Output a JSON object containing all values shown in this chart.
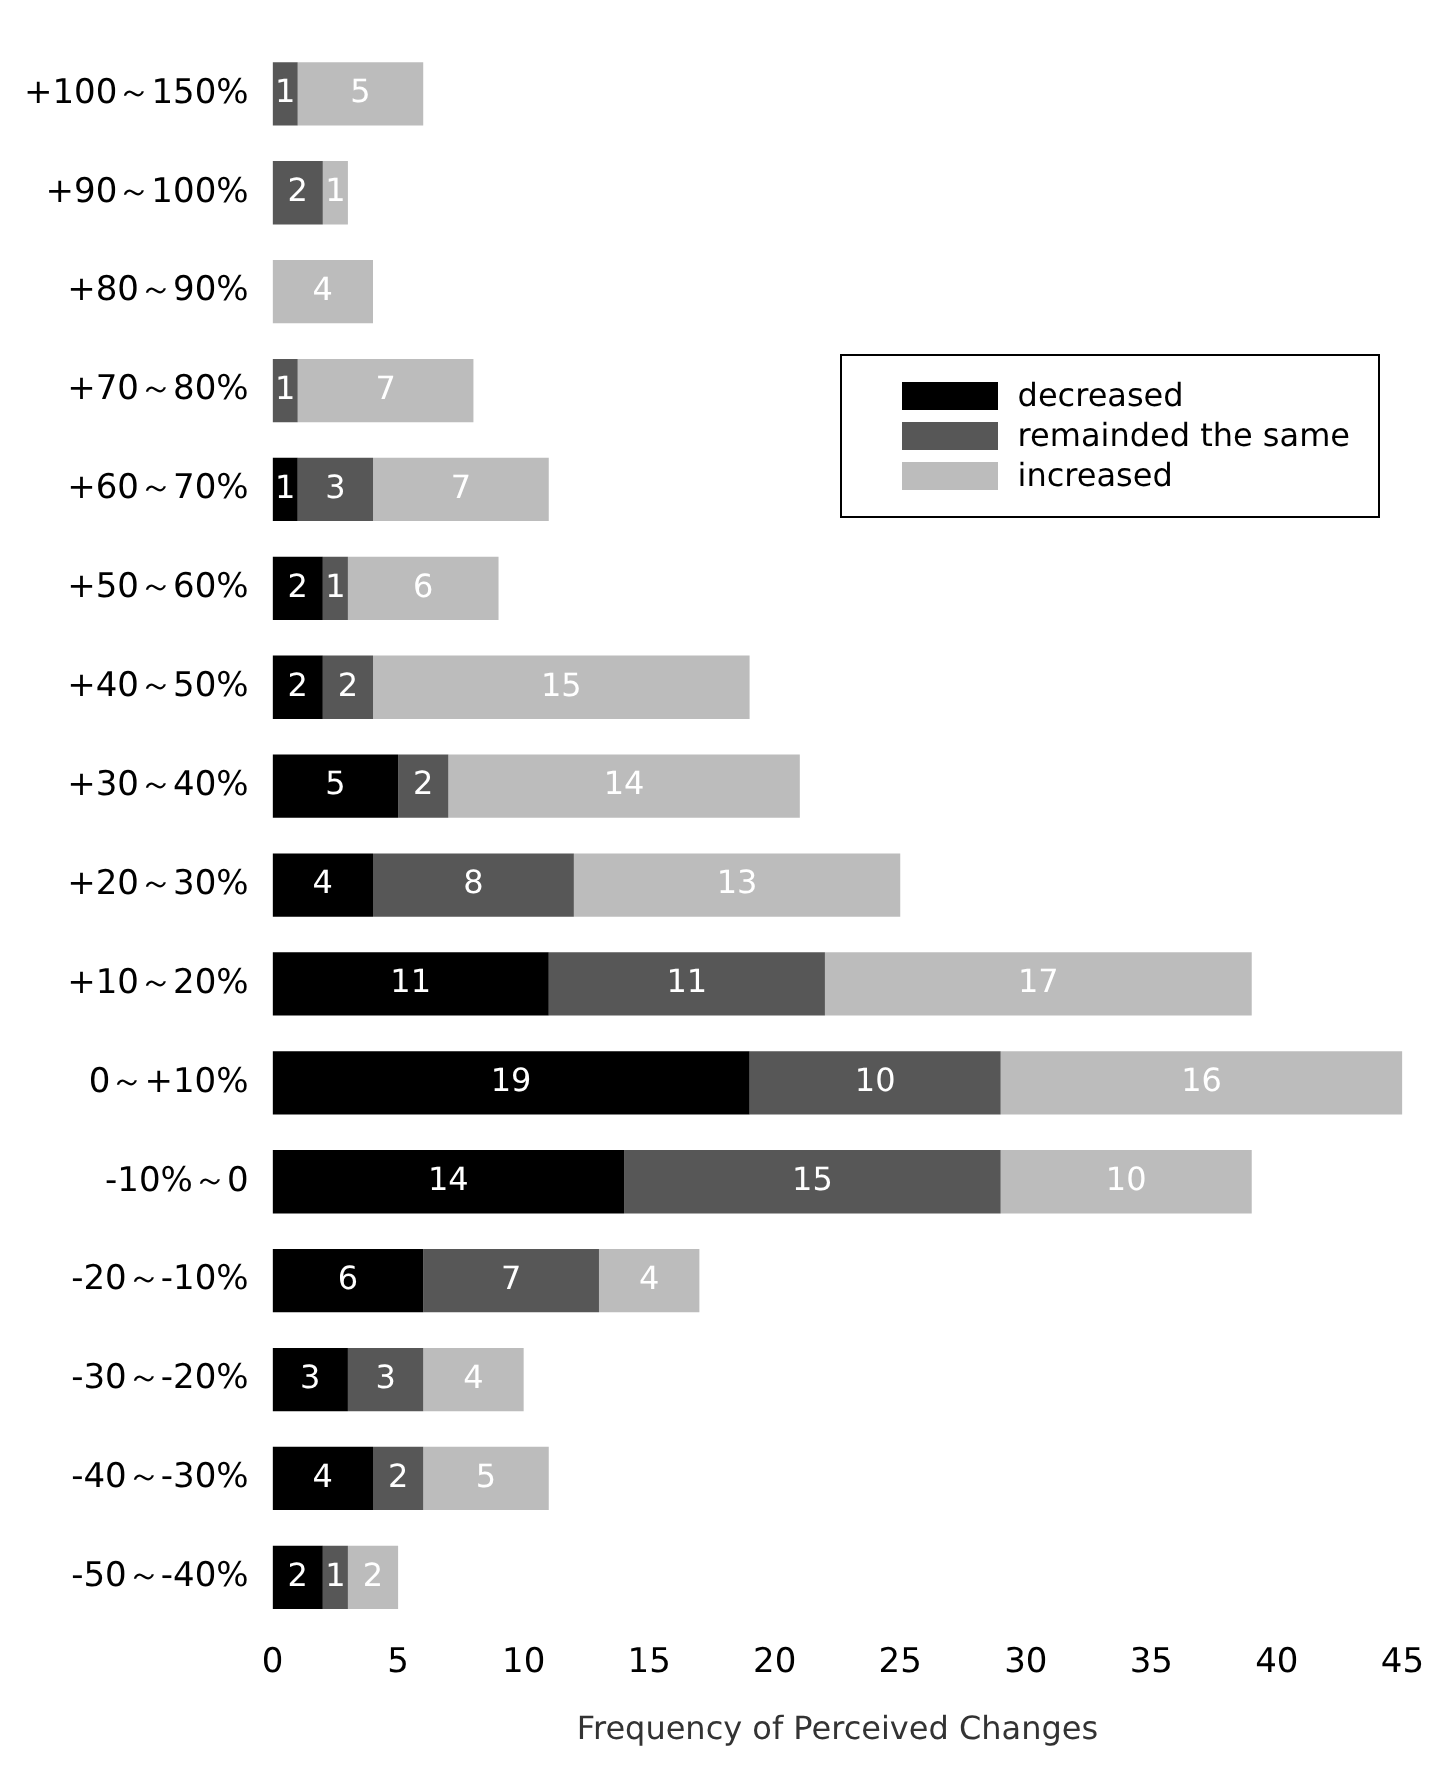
{
  "chart_data": {
    "type": "bar",
    "orientation": "horizontal",
    "stacked": true,
    "xlabel": "Frequency of Perceived Changes",
    "categories": [
      "+100～150%",
      "+90～100%",
      "+80～90%",
      "+70～80%",
      "+60～70%",
      "+50～60%",
      "+40～50%",
      "+30～40%",
      "+20～30%",
      "+10～20%",
      "0～+10%",
      "-10%～0",
      "-20～-10%",
      "-30～-20%",
      "-40～-30%",
      "-50～-40%"
    ],
    "series": [
      {
        "name": "decreased",
        "color": "#000000",
        "values": [
          0,
          0,
          0,
          0,
          1,
          2,
          2,
          5,
          4,
          11,
          19,
          14,
          6,
          3,
          4,
          2
        ],
        "value_labels": [
          null,
          null,
          null,
          null,
          "1",
          "2",
          "2",
          "5",
          "4",
          "11",
          "19",
          "14",
          "6",
          "3",
          "4",
          "2"
        ]
      },
      {
        "name": "remainded the same",
        "color": "#575757",
        "values": [
          1,
          2,
          0,
          1,
          3,
          1,
          2,
          2,
          8,
          11,
          10,
          15,
          7,
          3,
          2,
          1
        ],
        "value_labels": [
          "1",
          "2",
          null,
          "1",
          "3",
          "1",
          "2",
          "2",
          "8",
          "11",
          "10",
          "15",
          "7",
          "3",
          "2",
          "1"
        ]
      },
      {
        "name": "increased",
        "color": "#bcbcbc",
        "values": [
          5,
          1,
          4,
          7,
          7,
          6,
          15,
          14,
          13,
          17,
          16,
          10,
          4,
          4,
          5,
          2
        ],
        "value_labels": [
          "5",
          "1",
          "4",
          "7",
          "7",
          "6",
          "15",
          "14",
          "13",
          "17",
          "16",
          "10",
          "4",
          "4",
          "5",
          "2"
        ]
      }
    ],
    "xlim": [
      0,
      45
    ],
    "xticks": [
      0,
      5,
      10,
      15,
      20,
      25,
      30,
      35,
      40,
      45
    ],
    "grid": false,
    "legend": "top right"
  }
}
